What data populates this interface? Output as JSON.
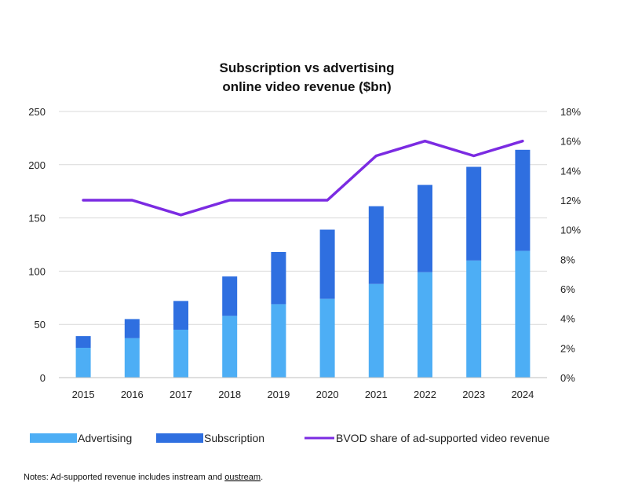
{
  "chart_data": {
    "type": "bar",
    "stacked": true,
    "title_lines": [
      "Subscription vs advertising",
      "online video revenue ($bn)"
    ],
    "categories": [
      "2015",
      "2016",
      "2017",
      "2018",
      "2019",
      "2020",
      "2021",
      "2022",
      "2023",
      "2024"
    ],
    "series": [
      {
        "name": "Advertising",
        "type": "bar",
        "axis": "left",
        "color": "#4DAEF5",
        "values": [
          28,
          37,
          45,
          58,
          69,
          74,
          88,
          99,
          110,
          119
        ]
      },
      {
        "name": "Subscription",
        "type": "bar",
        "axis": "left",
        "color": "#2F6FE0",
        "values": [
          11,
          18,
          27,
          37,
          49,
          65,
          73,
          82,
          88,
          95
        ]
      },
      {
        "name": "BVOD share of ad-supported video revenue",
        "type": "line",
        "axis": "right",
        "color": "#7B2BE2",
        "values": [
          12,
          12,
          11,
          12,
          12,
          12,
          15,
          16,
          15,
          16
        ]
      }
    ],
    "y_left": {
      "min": 0,
      "max": 250,
      "ticks": [
        "0",
        "50",
        "100",
        "150",
        "200",
        "250"
      ]
    },
    "y_right": {
      "min": 0,
      "max": 18,
      "ticks": [
        "0%",
        "2%",
        "4%",
        "6%",
        "8%",
        "10%",
        "12%",
        "14%",
        "16%",
        "18%"
      ]
    },
    "grid": true,
    "legend_position": "bottom"
  },
  "notes": {
    "prefix": "Notes: Ad-supported revenue includes instream and ",
    "underlined": "oustream",
    "suffix": "."
  }
}
